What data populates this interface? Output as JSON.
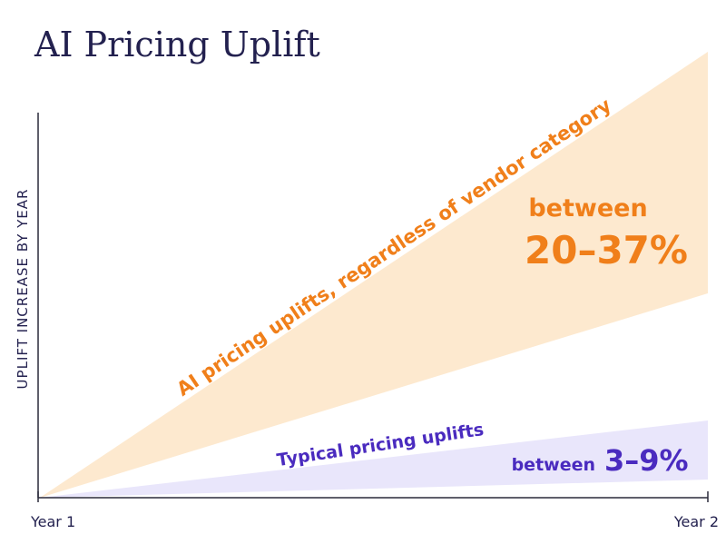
{
  "title": "AI Pricing Uplift",
  "axis": {
    "y_label": "UPLIFT INCREASE BY YEAR",
    "x_start": "Year 1",
    "x_end": "Year 2"
  },
  "ai": {
    "label": "AI pricing uplifts, regardless of vendor category",
    "prefix": "between",
    "range": "20–37%"
  },
  "typical": {
    "label": "Typical pricing uplifts",
    "prefix": "between",
    "range": "3–9%"
  }
}
